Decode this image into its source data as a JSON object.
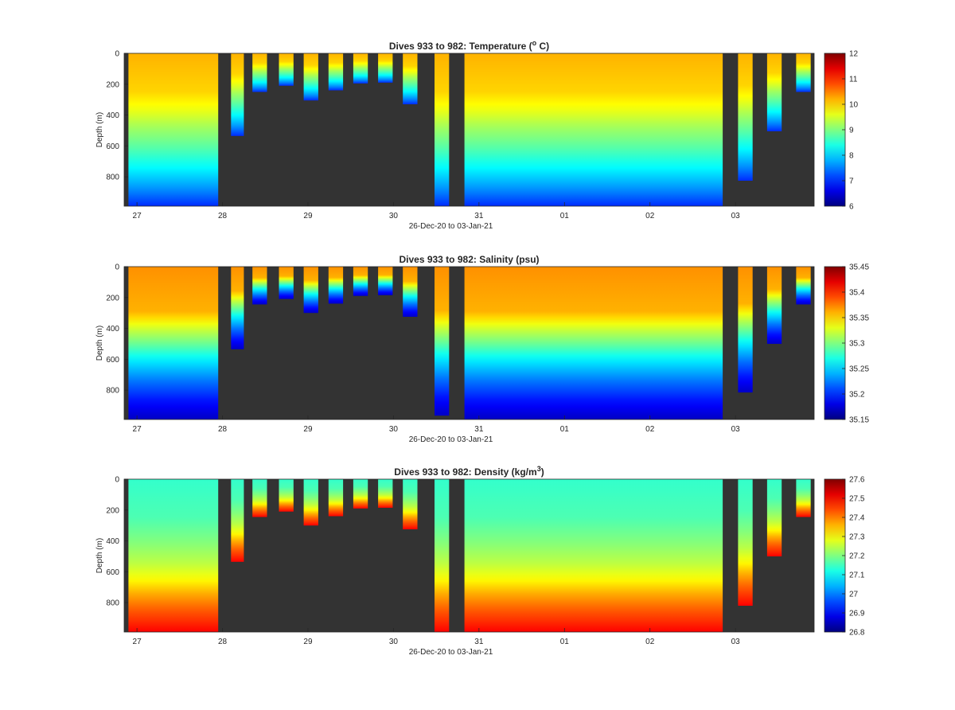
{
  "figure": {
    "xlabel": "26-Dec-20 to 03-Jan-21",
    "x_tick_labels": [
      "27",
      "28",
      "29",
      "30",
      "31",
      "01",
      "02",
      "03"
    ],
    "y_tick_labels": [
      "0",
      "200",
      "400",
      "600",
      "800"
    ],
    "ylabel": "Depth (m)",
    "background_color": "#333333"
  },
  "chart_data": [
    {
      "type": "heatmap",
      "variable": "temperature",
      "title_prefix": "Dives 933 to 982: Temperature (",
      "title_sup": "o",
      "title_suffix": " C)",
      "ylabel": "Depth (m)",
      "xlabel": "26-Dec-20 to 03-Jan-21",
      "x_tick_labels": [
        "27",
        "28",
        "29",
        "30",
        "31",
        "01",
        "02",
        "03"
      ],
      "y_tick_labels": [
        "0",
        "200",
        "400",
        "600",
        "800"
      ],
      "colorbar_ticks": [
        "12",
        "11",
        "10",
        "9",
        "8",
        "7",
        "6"
      ],
      "clim": [
        6,
        12
      ],
      "ylim": [
        0,
        990
      ],
      "colormap": "jet",
      "profile": [
        [
          0,
          10.2
        ],
        [
          250,
          10.0
        ],
        [
          380,
          9.6
        ],
        [
          480,
          9.2
        ],
        [
          600,
          8.8
        ],
        [
          750,
          8.2
        ],
        [
          880,
          7.6
        ],
        [
          990,
          7.0
        ]
      ],
      "segments": [
        {
          "start": 26.9,
          "end": 27.95,
          "max_depth": 990
        },
        {
          "start": 28.1,
          "end": 28.25,
          "max_depth": 535
        },
        {
          "start": 28.35,
          "end": 28.52,
          "max_depth": 250
        },
        {
          "start": 28.66,
          "end": 28.83,
          "max_depth": 210
        },
        {
          "start": 28.95,
          "end": 29.12,
          "max_depth": 305
        },
        {
          "start": 29.24,
          "end": 29.41,
          "max_depth": 240
        },
        {
          "start": 29.53,
          "end": 29.7,
          "max_depth": 195
        },
        {
          "start": 29.82,
          "end": 29.99,
          "max_depth": 190
        },
        {
          "start": 30.11,
          "end": 30.28,
          "max_depth": 330
        },
        {
          "start": 30.48,
          "end": 30.65,
          "max_depth": 990
        },
        {
          "start": 30.83,
          "end": 33.85,
          "max_depth": 990
        },
        {
          "start": 34.03,
          "end": 34.2,
          "max_depth": 825
        },
        {
          "start": 34.37,
          "end": 34.54,
          "max_depth": 505
        },
        {
          "start": 34.71,
          "end": 34.88,
          "max_depth": 250
        }
      ]
    },
    {
      "type": "heatmap",
      "variable": "salinity",
      "title_prefix": "Dives 933 to 982: Salinity (psu)",
      "title_sup": "",
      "title_suffix": "",
      "ylabel": "Depth (m)",
      "xlabel": "26-Dec-20 to 03-Jan-21",
      "x_tick_labels": [
        "27",
        "28",
        "29",
        "30",
        "31",
        "01",
        "02",
        "03"
      ],
      "y_tick_labels": [
        "0",
        "200",
        "400",
        "600",
        "800"
      ],
      "colorbar_ticks": [
        "35.45",
        "35.4",
        "35.35",
        "35.3",
        "35.25",
        "35.2",
        "35.15"
      ],
      "clim": [
        35.15,
        35.45
      ],
      "ylim": [
        0,
        990
      ],
      "colormap": "jet",
      "profile": [
        [
          0,
          35.37
        ],
        [
          300,
          35.36
        ],
        [
          380,
          35.33
        ],
        [
          480,
          35.3
        ],
        [
          600,
          35.26
        ],
        [
          750,
          35.22
        ],
        [
          880,
          35.19
        ],
        [
          990,
          35.17
        ]
      ],
      "segments": [
        {
          "start": 26.9,
          "end": 27.95,
          "max_depth": 990
        },
        {
          "start": 28.1,
          "end": 28.25,
          "max_depth": 535
        },
        {
          "start": 28.35,
          "end": 28.52,
          "max_depth": 245
        },
        {
          "start": 28.66,
          "end": 28.83,
          "max_depth": 210
        },
        {
          "start": 28.95,
          "end": 29.12,
          "max_depth": 300
        },
        {
          "start": 29.24,
          "end": 29.41,
          "max_depth": 240
        },
        {
          "start": 29.53,
          "end": 29.7,
          "max_depth": 190
        },
        {
          "start": 29.82,
          "end": 29.99,
          "max_depth": 185
        },
        {
          "start": 30.11,
          "end": 30.28,
          "max_depth": 325
        },
        {
          "start": 30.48,
          "end": 30.65,
          "max_depth": 965
        },
        {
          "start": 30.83,
          "end": 33.85,
          "max_depth": 990
        },
        {
          "start": 34.03,
          "end": 34.2,
          "max_depth": 815
        },
        {
          "start": 34.37,
          "end": 34.54,
          "max_depth": 500
        },
        {
          "start": 34.71,
          "end": 34.88,
          "max_depth": 245
        }
      ]
    },
    {
      "type": "heatmap",
      "variable": "density",
      "title_prefix": "Dives 933 to 982: Density (kg/m",
      "title_sup": "3",
      "title_suffix": ")",
      "ylabel": "Depth (m)",
      "xlabel": "26-Dec-20 to 03-Jan-21",
      "x_tick_labels": [
        "27",
        "28",
        "29",
        "30",
        "31",
        "01",
        "02",
        "03"
      ],
      "y_tick_labels": [
        "0",
        "200",
        "400",
        "600",
        "800"
      ],
      "colorbar_ticks": [
        "27.6",
        "27.5",
        "27.4",
        "27.3",
        "27.2",
        "27.1",
        "27",
        "26.9",
        "26.8"
      ],
      "clim": [
        26.8,
        27.6
      ],
      "ylim": [
        0,
        990
      ],
      "colormap": "jet",
      "profile": [
        [
          0,
          27.14
        ],
        [
          250,
          27.16
        ],
        [
          400,
          27.2
        ],
        [
          550,
          27.25
        ],
        [
          650,
          27.3
        ],
        [
          750,
          27.37
        ],
        [
          850,
          27.43
        ],
        [
          990,
          27.5
        ]
      ],
      "segments": [
        {
          "start": 26.9,
          "end": 27.95,
          "max_depth": 990
        },
        {
          "start": 28.1,
          "end": 28.25,
          "max_depth": 535
        },
        {
          "start": 28.35,
          "end": 28.52,
          "max_depth": 245
        },
        {
          "start": 28.66,
          "end": 28.83,
          "max_depth": 210
        },
        {
          "start": 28.95,
          "end": 29.12,
          "max_depth": 300
        },
        {
          "start": 29.24,
          "end": 29.41,
          "max_depth": 240
        },
        {
          "start": 29.53,
          "end": 29.7,
          "max_depth": 190
        },
        {
          "start": 29.82,
          "end": 29.99,
          "max_depth": 185
        },
        {
          "start": 30.11,
          "end": 30.28,
          "max_depth": 325
        },
        {
          "start": 30.48,
          "end": 30.65,
          "max_depth": 990
        },
        {
          "start": 30.83,
          "end": 33.85,
          "max_depth": 990
        },
        {
          "start": 34.03,
          "end": 34.2,
          "max_depth": 820
        },
        {
          "start": 34.37,
          "end": 34.54,
          "max_depth": 500
        },
        {
          "start": 34.71,
          "end": 34.88,
          "max_depth": 245
        }
      ]
    }
  ]
}
